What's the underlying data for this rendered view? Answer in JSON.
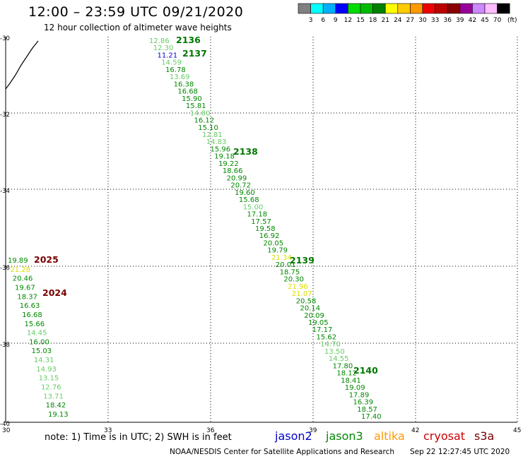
{
  "header": {
    "title": "12:00 – 23:59 UTC 09/21/2020",
    "subtitle": "12 hour collection of altimeter wave heights"
  },
  "legend": {
    "bins": [
      {
        "color": "#808080",
        "label": "3"
      },
      {
        "color": "#00ffff",
        "label": "6"
      },
      {
        "color": "#00b0ff",
        "label": "9"
      },
      {
        "color": "#0000ff",
        "label": "12"
      },
      {
        "color": "#00dd00",
        "label": "15"
      },
      {
        "color": "#00bb00",
        "label": "18"
      },
      {
        "color": "#008000",
        "label": "21"
      },
      {
        "color": "#ffff00",
        "label": "24"
      },
      {
        "color": "#ffcc00",
        "label": "27"
      },
      {
        "color": "#ff9900",
        "label": "30"
      },
      {
        "color": "#ee0000",
        "label": "33"
      },
      {
        "color": "#bb0000",
        "label": "36"
      },
      {
        "color": "#880000",
        "label": "39"
      },
      {
        "color": "#990099",
        "label": "42"
      },
      {
        "color": "#cc88ff",
        "label": "45"
      },
      {
        "color": "#ffbbff",
        "label": "70"
      },
      {
        "color": "#000000",
        "label": ""
      }
    ],
    "unit": "(ft)"
  },
  "axes": {
    "x_ticks": [
      "30",
      "33",
      "36",
      "39",
      "42",
      "45"
    ],
    "y_ticks": [
      "-30",
      "-32",
      "-34",
      "-36",
      "-38",
      "-40"
    ]
  },
  "track_times": [
    {
      "text": "2136",
      "color": "#007700"
    },
    {
      "text": "2137",
      "color": "#007700"
    },
    {
      "text": "2138",
      "color": "#007700"
    },
    {
      "text": "2139",
      "color": "#007700"
    },
    {
      "text": "2140",
      "color": "#007700"
    },
    {
      "text": "2025",
      "color": "#770000"
    },
    {
      "text": "2024",
      "color": "#770000"
    }
  ],
  "track_a": [
    {
      "v": "12.86",
      "c": "#66cc66"
    },
    {
      "v": "12.30",
      "c": "#66cc66"
    },
    {
      "v": "11.21",
      "c": "#0000cc"
    },
    {
      "v": "14.59",
      "c": "#66cc66"
    },
    {
      "v": "16.78",
      "c": "#008800"
    },
    {
      "v": "13.69",
      "c": "#66cc66"
    },
    {
      "v": "16.38",
      "c": "#008800"
    },
    {
      "v": "16.68",
      "c": "#008800"
    },
    {
      "v": "15.90",
      "c": "#008800"
    },
    {
      "v": "15.81",
      "c": "#008800"
    },
    {
      "v": "14.80",
      "c": "#66cc66"
    },
    {
      "v": "16.12",
      "c": "#008800"
    },
    {
      "v": "15.10",
      "c": "#008800"
    },
    {
      "v": "12.81",
      "c": "#66cc66"
    },
    {
      "v": "14.83",
      "c": "#66cc66"
    },
    {
      "v": "15.96",
      "c": "#008800"
    },
    {
      "v": "19.18",
      "c": "#008800"
    },
    {
      "v": "19.22",
      "c": "#008800"
    },
    {
      "v": "18.66",
      "c": "#008800"
    },
    {
      "v": "20.99",
      "c": "#008800"
    },
    {
      "v": "20.72",
      "c": "#008800"
    },
    {
      "v": "19.60",
      "c": "#008800"
    },
    {
      "v": "15.68",
      "c": "#008800"
    },
    {
      "v": "15.00",
      "c": "#66cc66"
    },
    {
      "v": "17.18",
      "c": "#008800"
    },
    {
      "v": "17.57",
      "c": "#008800"
    },
    {
      "v": "19.58",
      "c": "#008800"
    },
    {
      "v": "16.92",
      "c": "#008800"
    },
    {
      "v": "20.05",
      "c": "#008800"
    },
    {
      "v": "19.79",
      "c": "#008800"
    },
    {
      "v": "21.34",
      "c": "#dddd00"
    },
    {
      "v": "20.01",
      "c": "#008800"
    },
    {
      "v": "18.75",
      "c": "#008800"
    },
    {
      "v": "20.30",
      "c": "#008800"
    },
    {
      "v": "21.96",
      "c": "#dddd00"
    },
    {
      "v": "21.07",
      "c": "#dddd00"
    },
    {
      "v": "20.58",
      "c": "#008800"
    },
    {
      "v": "20.14",
      "c": "#008800"
    },
    {
      "v": "20.09",
      "c": "#008800"
    },
    {
      "v": "19.05",
      "c": "#008800"
    },
    {
      "v": "17.17",
      "c": "#008800"
    },
    {
      "v": "15.62",
      "c": "#008800"
    },
    {
      "v": "14.70",
      "c": "#66cc66"
    },
    {
      "v": "13.50",
      "c": "#66cc66"
    },
    {
      "v": "14.55",
      "c": "#66cc66"
    },
    {
      "v": "17.80",
      "c": "#008800"
    },
    {
      "v": "18.12",
      "c": "#008800"
    },
    {
      "v": "18.41",
      "c": "#008800"
    },
    {
      "v": "19.09",
      "c": "#008800"
    },
    {
      "v": "17.89",
      "c": "#008800"
    },
    {
      "v": "16.39",
      "c": "#008800"
    },
    {
      "v": "18.57",
      "c": "#008800"
    },
    {
      "v": "17.40",
      "c": "#008800"
    }
  ],
  "track_b": [
    {
      "v": "19.89",
      "c": "#008800"
    },
    {
      "v": "21.28",
      "c": "#dddd00"
    },
    {
      "v": "20.46",
      "c": "#008800"
    },
    {
      "v": "19.67",
      "c": "#008800"
    },
    {
      "v": "18.37",
      "c": "#008800"
    },
    {
      "v": "16.63",
      "c": "#008800"
    },
    {
      "v": "16.68",
      "c": "#008800"
    },
    {
      "v": "15.66",
      "c": "#008800"
    },
    {
      "v": "14.45",
      "c": "#66cc66"
    },
    {
      "v": "16.00",
      "c": "#008800"
    },
    {
      "v": "15.03",
      "c": "#008800"
    },
    {
      "v": "14.31",
      "c": "#66cc66"
    },
    {
      "v": "14.93",
      "c": "#66cc66"
    },
    {
      "v": "13.15",
      "c": "#66cc66"
    },
    {
      "v": "12.76",
      "c": "#66cc66"
    },
    {
      "v": "13.71",
      "c": "#66cc66"
    },
    {
      "v": "18.42",
      "c": "#008800"
    },
    {
      "v": "19.13",
      "c": "#008800"
    }
  ],
  "footer": {
    "note": "note:  1) Time is in UTC; 2) SWH is in feet",
    "satellites": [
      {
        "name": "jason2",
        "color": "#0000cc"
      },
      {
        "name": "jason3",
        "color": "#008800"
      },
      {
        "name": "altika",
        "color": "#ff9900"
      },
      {
        "name": "cryosat",
        "color": "#cc0000"
      },
      {
        "name": "s3a",
        "color": "#770000"
      }
    ],
    "credit": "NOAA/NESDIS Center for Satellite Applications and Research",
    "timestamp": "Sep 22 12:27:45 UTC 2020"
  }
}
